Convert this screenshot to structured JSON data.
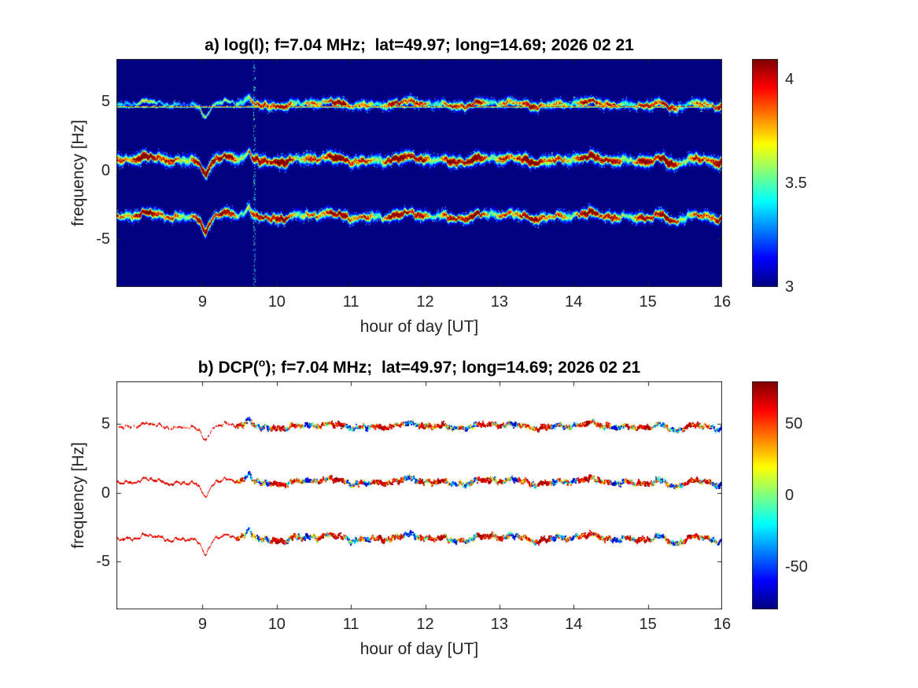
{
  "figure": {
    "kind": "matlab-style two-panel Doppler figure",
    "background": "#ffffff",
    "axes_color": "#262626"
  },
  "chart_data": [
    {
      "type": "heatmap",
      "panel": "a",
      "title": "a) log(I); f=7.04 MHz;  lat=49.97; long=14.69; 2026 02 21",
      "title_parts": {
        "pre": "a) log(I); f=7.04 MHz;  lat=49.97; long=14.69; 2026 02 21",
        "sup": "",
        "post": ""
      },
      "xlabel": "hour of day [UT]",
      "ylabel": "frequency [Hz]",
      "xlim": [
        7.84,
        16
      ],
      "ylim": [
        -8.5,
        8.1
      ],
      "xticks": [
        9,
        10,
        11,
        12,
        13,
        14,
        15,
        16
      ],
      "yticks": [
        5,
        0,
        -5
      ],
      "colormap": "jet",
      "clim": [
        3,
        4.1
      ],
      "colorbar_ticks": [
        4,
        3.5,
        3
      ],
      "background_value": 3,
      "carrier_line_hz": 4.65,
      "traces": [
        {
          "center_hz": 4.85,
          "width_hz": 0.22,
          "peak_value": 4.1
        },
        {
          "center_hz": 0.8,
          "width_hz": 0.27,
          "peak_value": 4.2
        },
        {
          "center_hz": -3.3,
          "width_hz": 0.24,
          "peak_value": 4.15
        }
      ],
      "events": [
        {
          "time_ut": 9.05,
          "shift_hz": -0.85,
          "width_h": 0.07
        },
        {
          "time_ut": 9.62,
          "shift_hz": 0.5,
          "width_h": 0.05
        },
        {
          "time_ut": 9.78,
          "shift_hz": -0.25,
          "width_h": 0.05
        },
        {
          "time_ut": 15.35,
          "shift_hz": -0.55,
          "width_h": 0.12
        }
      ],
      "artifact_column_ut": 9.7
    },
    {
      "type": "heatmap",
      "panel": "b",
      "title": "b) DCP(°); f=7.04 MHz;  lat=49.97; long=14.69; 2026 02 21",
      "title_parts": {
        "pre": "b) DCP(",
        "sup": "o",
        "post": "); f=7.04 MHz;  lat=49.97; long=14.69; 2026 02 21"
      },
      "xlabel": "hour of day [UT]",
      "ylabel": "frequency [Hz]",
      "xlim": [
        7.84,
        16
      ],
      "ylim": [
        -8.5,
        8.1
      ],
      "xticks": [
        9,
        10,
        11,
        12,
        13,
        14,
        15,
        16
      ],
      "yticks": [
        5,
        0,
        -5
      ],
      "colormap": "jet",
      "clim": [
        -80,
        80
      ],
      "colorbar_ticks": [
        50,
        0,
        -50
      ],
      "background_value": null,
      "traces": [
        {
          "center_hz": 4.85,
          "width_hz": 0.18,
          "dominant_dcp_deg": 60
        },
        {
          "center_hz": 0.8,
          "width_hz": 0.2,
          "dominant_dcp_deg": 60
        },
        {
          "center_hz": -3.3,
          "width_hz": 0.19,
          "dominant_dcp_deg": 60
        }
      ],
      "events": [
        {
          "time_ut": 9.05,
          "shift_hz": -0.85,
          "width_h": 0.07
        },
        {
          "time_ut": 9.62,
          "shift_hz": 0.5,
          "width_h": 0.05
        },
        {
          "time_ut": 9.78,
          "shift_hz": -0.25,
          "width_h": 0.05
        },
        {
          "time_ut": 15.35,
          "shift_hz": -0.55,
          "width_h": 0.12
        }
      ],
      "mixed_polarity_after_ut": 9.45
    }
  ]
}
